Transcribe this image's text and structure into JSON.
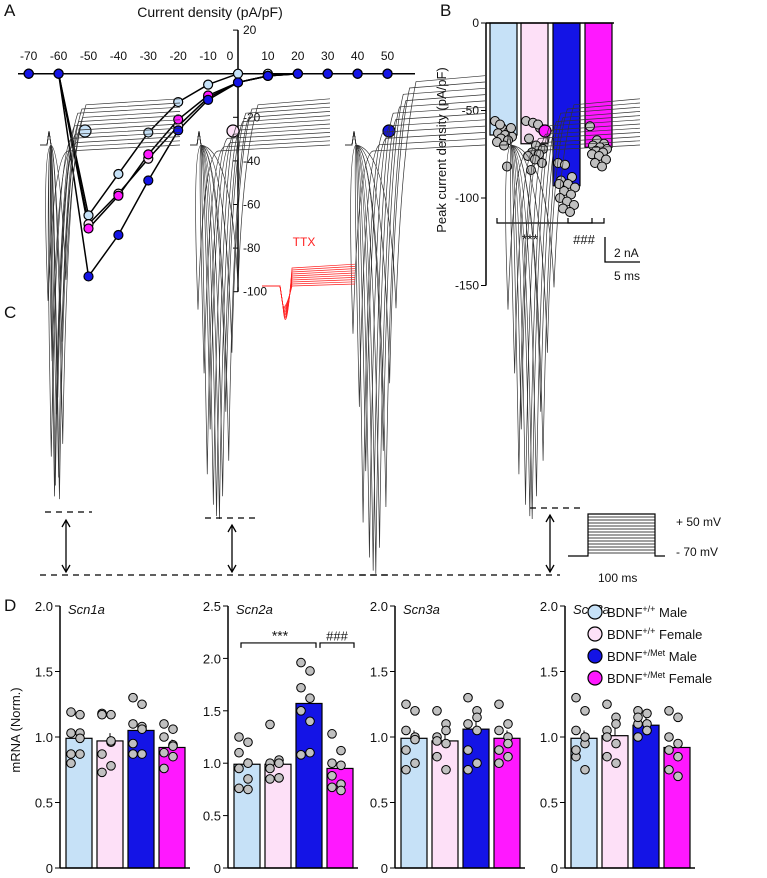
{
  "panel_labels": {
    "a": "A",
    "b": "B",
    "c": "C",
    "d": "D"
  },
  "colors": {
    "wt_male": "#c6e1f7",
    "wt_female": "#fde0f7",
    "met_male": "#1414e6",
    "met_female": "#ff18ff",
    "dot": "#c0c0c0",
    "ttx": "#ff2020"
  },
  "chart_data": [
    {
      "id": "A",
      "type": "line",
      "title": "Current density (pA/pF)",
      "x": [
        -70,
        -60,
        -50,
        -40,
        -30,
        -20,
        -10,
        0,
        10,
        20,
        30,
        40,
        50
      ],
      "xticks": [
        "-70",
        "-60",
        "-50",
        "-40",
        "-30",
        "-20",
        "-10",
        "0",
        "10",
        "20",
        "30",
        "40",
        "50"
      ],
      "yticks": [
        "20",
        "-20",
        "-40",
        "-60",
        "-80",
        "-100"
      ],
      "ylim": [
        -100,
        20
      ],
      "series": [
        {
          "name": "BDNF+/+ Male",
          "values": [
            0,
            0,
            -65,
            -46,
            -27,
            -13,
            -5,
            0,
            0,
            0,
            0,
            0,
            0
          ]
        },
        {
          "name": "BDNF+/+ Female",
          "values": [
            0,
            0,
            -69,
            -55,
            -39,
            -24,
            -11,
            -4,
            -1,
            0,
            0,
            0,
            0
          ]
        },
        {
          "name": "BDNF+/Met Male",
          "values": [
            0,
            0,
            -93,
            -74,
            -49,
            -26,
            -12,
            -4,
            -1,
            0,
            0,
            0,
            0
          ]
        },
        {
          "name": "BDNF+/Met Female",
          "values": [
            0,
            0,
            -71,
            -56,
            -37,
            -21,
            -10,
            -4,
            -1,
            0,
            0,
            0,
            0
          ]
        }
      ]
    },
    {
      "id": "B",
      "type": "bar",
      "ylabel": "Peak current density (pA/pF)",
      "ylim": [
        -150,
        0
      ],
      "yticks": [
        "0",
        "-50",
        "-100",
        "-150"
      ],
      "values": [
        -64,
        -69,
        -93,
        -71
      ],
      "points": [
        [
          -56,
          -60,
          -62,
          -63,
          -64,
          -65,
          -66,
          -67,
          -68,
          -70,
          -60,
          -58,
          -82
        ],
        [
          -56,
          -57,
          -60,
          -66,
          -70,
          -72,
          -74,
          -75,
          -76,
          -78,
          -80,
          -84,
          -58
        ],
        [
          -80,
          -81,
          -88,
          -90,
          -92,
          -94,
          -96,
          -98,
          -100,
          -102,
          -104,
          -106,
          -108,
          -92
        ],
        [
          -59,
          -67,
          -69,
          -70,
          -71,
          -72,
          -73,
          -74,
          -75,
          -76,
          -78,
          -80,
          -82
        ]
      ],
      "annotations": [
        "***",
        "###"
      ]
    },
    {
      "id": "D",
      "type": "bar",
      "ylabel": "mRNA (Norm.)",
      "panels": [
        {
          "title": "Scn1a",
          "ylim": [
            0,
            2.0
          ],
          "yticks": [
            "0",
            "0.5",
            "1.0",
            "1.5",
            "2.0"
          ],
          "values": [
            0.99,
            0.97,
            1.05,
            0.92
          ],
          "points": [
            [
              1.19,
              1.17,
              1.03,
              1.03,
              0.87,
              0.87,
              0.8,
              0.99
            ],
            [
              1.18,
              1.17,
              1.17,
              0.96,
              0.87,
              0.78,
              0.73,
              0.97
            ],
            [
              1.3,
              1.25,
              1.1,
              1.08,
              0.95,
              0.87,
              0.87,
              1.06
            ],
            [
              1.1,
              1.06,
              1.0,
              0.94,
              0.88,
              0.85,
              0.76,
              0.93
            ]
          ]
        },
        {
          "title": "Scn2a",
          "ylim": [
            0,
            2.5
          ],
          "yticks": [
            "0",
            "0.5",
            "1.0",
            "1.5",
            "2.0",
            "2.5"
          ],
          "values": [
            0.99,
            0.99,
            1.57,
            0.95
          ],
          "points": [
            [
              1.25,
              1.2,
              1.1,
              1.0,
              0.95,
              0.85,
              0.76,
              0.75
            ],
            [
              1.37,
              1.03,
              1.0,
              1.0,
              0.95,
              0.86,
              0.85,
              0.86
            ],
            [
              1.96,
              1.88,
              1.72,
              1.62,
              1.5,
              1.4,
              1.08,
              1.1
            ],
            [
              1.28,
              1.12,
              1.0,
              0.98,
              0.88,
              0.8,
              0.77,
              0.74
            ]
          ],
          "annotations": [
            "***",
            "###"
          ]
        },
        {
          "title": "Scn3a",
          "ylim": [
            0,
            2.0
          ],
          "yticks": [
            "0",
            "0.5",
            "1.0",
            "1.5",
            "2.0"
          ],
          "values": [
            0.99,
            0.97,
            1.06,
            0.99
          ],
          "points": [
            [
              1.25,
              1.2,
              1.05,
              1.0,
              0.9,
              0.8,
              0.75,
              0.98
            ],
            [
              1.2,
              1.1,
              1.0,
              0.95,
              0.85,
              0.75,
              0.97,
              1.05
            ],
            [
              1.3,
              1.2,
              1.1,
              1.05,
              0.9,
              0.8,
              0.75,
              1.15
            ],
            [
              1.25,
              1.1,
              1.05,
              1.0,
              0.9,
              0.85,
              0.8,
              0.95
            ]
          ]
        },
        {
          "title": "Scn8a",
          "ylim": [
            0,
            2.0
          ],
          "yticks": [
            "0",
            "0.5",
            "1.0",
            "1.5",
            "2.0"
          ],
          "values": [
            0.99,
            1.01,
            1.09,
            0.92
          ],
          "points": [
            [
              1.3,
              1.2,
              1.05,
              0.95,
              0.85,
              0.75,
              0.9,
              1.0
            ],
            [
              1.25,
              1.15,
              1.05,
              0.95,
              0.85,
              0.8,
              1.0,
              1.1
            ],
            [
              1.2,
              1.18,
              1.1,
              1.05,
              1.0,
              1.1,
              1.15,
              1.05
            ],
            [
              1.2,
              1.15,
              1.0,
              0.85,
              0.75,
              0.7,
              0.9,
              0.95
            ]
          ]
        }
      ],
      "legend": {
        "position": "top-right",
        "entries": [
          {
            "base": "BDNF",
            "sup": "+/+",
            "suffix": " Male"
          },
          {
            "base": "BDNF",
            "sup": "+/+",
            "suffix": " Female"
          },
          {
            "base": "BDNF",
            "sup": "+/Met",
            "suffix": " Male"
          },
          {
            "base": "BDNF",
            "sup": "+/Met",
            "suffix": " Female"
          }
        ]
      }
    }
  ],
  "panel_c": {
    "ttx_label": "TTX",
    "scale_current": "2 nA",
    "scale_time": "5 ms",
    "protocol_high": "+ 50 mV",
    "protocol_low": "- 70 mV",
    "protocol_duration": "100 ms"
  }
}
